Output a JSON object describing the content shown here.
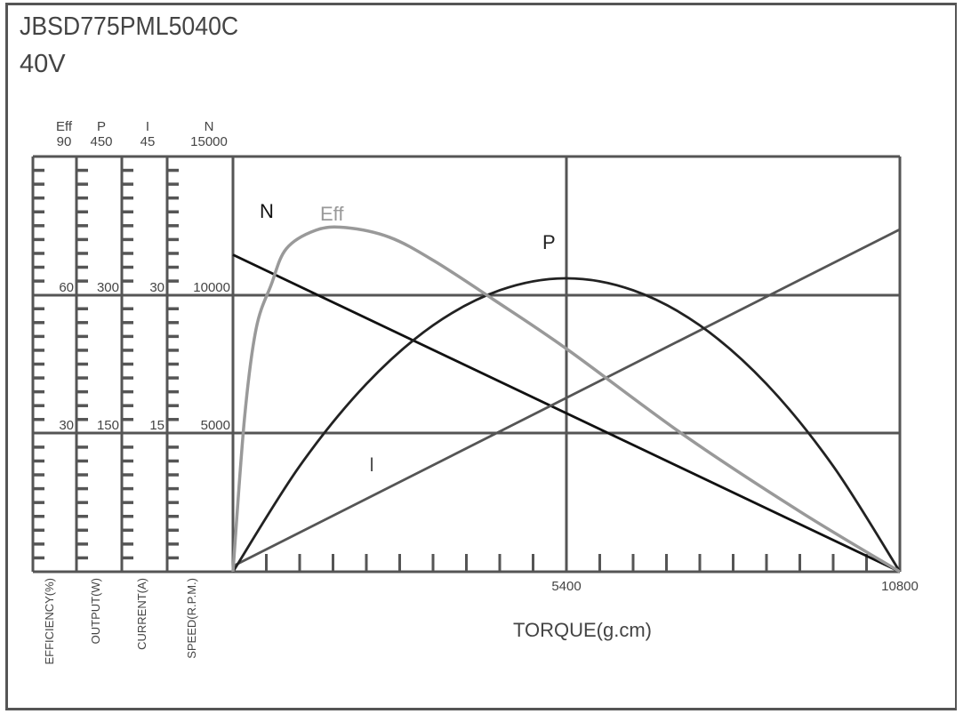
{
  "header": {
    "model": "JBSD775PML5040C",
    "voltage": "40V"
  },
  "chart_data": {
    "type": "line",
    "title": "JBSD775PML5040C",
    "subtitle": "40V",
    "xlabel": "TORQUE(g.cm)",
    "xlim": [
      0,
      10800
    ],
    "x_tick_labels": [
      "5400",
      "10800"
    ],
    "x_minor_tick_step": 540,
    "grid": true,
    "y_axes": [
      {
        "key": "eff",
        "header": "Eff",
        "label": "EFFICIENCY(%)",
        "range": [
          0,
          90
        ],
        "tick_labels": [
          "90",
          "60",
          "30"
        ]
      },
      {
        "key": "p",
        "header": "P",
        "label": "OUTPUT(W)",
        "range": [
          0,
          450
        ],
        "tick_labels": [
          "450",
          "300",
          "150"
        ]
      },
      {
        "key": "i",
        "header": "I",
        "label": "CURRENT(A)",
        "range": [
          0,
          45
        ],
        "tick_labels": [
          "45",
          "30",
          "15"
        ]
      },
      {
        "key": "n",
        "header": "N",
        "label": "SPEED(R.P.M.)",
        "range": [
          0,
          15000
        ],
        "tick_labels": [
          "15000",
          "10000",
          "5000"
        ]
      }
    ],
    "series": [
      {
        "name": "N",
        "axis": "n",
        "color": "#111111",
        "points": [
          [
            0,
            11450
          ],
          [
            10800,
            0
          ]
        ]
      },
      {
        "name": "I",
        "axis": "i",
        "color": "#555555",
        "points": [
          [
            0,
            0.6
          ],
          [
            10800,
            37.1
          ]
        ]
      },
      {
        "name": "P",
        "axis": "p",
        "color": "#222222",
        "points": [
          [
            0,
            0
          ],
          [
            1080,
            114.5
          ],
          [
            2160,
            203.5
          ],
          [
            3240,
            267
          ],
          [
            4320,
            305
          ],
          [
            5400,
            318
          ],
          [
            6480,
            305
          ],
          [
            7560,
            267
          ],
          [
            8640,
            203.5
          ],
          [
            9720,
            114.5
          ],
          [
            10800,
            0
          ]
        ]
      },
      {
        "name": "Eff",
        "axis": "eff",
        "color": "#999999",
        "points": [
          [
            0,
            0
          ],
          [
            187,
            33.3
          ],
          [
            374,
            52.6
          ],
          [
            619,
            62.2
          ],
          [
            864,
            70
          ],
          [
            1339,
            74
          ],
          [
            1814,
            74.6
          ],
          [
            2534,
            72.5
          ],
          [
            3254,
            67.4
          ],
          [
            4219,
            59
          ],
          [
            5414,
            48.2
          ],
          [
            7315,
            29.5
          ],
          [
            9187,
            13
          ],
          [
            10800,
            0
          ]
        ]
      }
    ]
  }
}
